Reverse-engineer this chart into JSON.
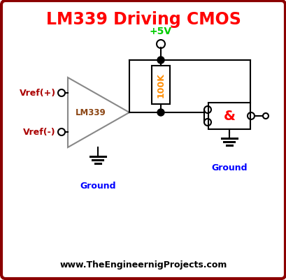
{
  "title": "LM339 Driving CMOS",
  "title_color": "#FF0000",
  "bg_color": "#FFFFFF",
  "border_color": "#8B0000",
  "website": "www.TheEngineernigProjects.com",
  "website_color": "#000000",
  "plus5v_label": "+5V",
  "plus5v_color": "#00CC00",
  "ground_label": "Ground",
  "ground_color": "#0000FF",
  "lm339_label": "LM339",
  "lm339_color": "#8B4513",
  "resistor_label": "100K",
  "resistor_color": "#FF8C00",
  "vref_plus": "Vref(+)",
  "vref_minus": "Vref(-)",
  "vref_color": "#AA0000",
  "and_label": "&",
  "and_color": "#FF0000"
}
